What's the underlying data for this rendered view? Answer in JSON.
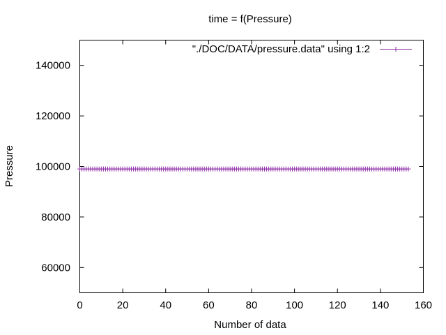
{
  "chart_data": {
    "type": "line",
    "title": "time = f(Pressure)",
    "xlabel": "Number of data",
    "ylabel": "Pressure",
    "xlim": [
      0,
      160
    ],
    "ylim": [
      50000,
      150000
    ],
    "xticks": [
      0,
      20,
      40,
      60,
      80,
      100,
      120,
      140,
      160
    ],
    "yticks": [
      60000,
      80000,
      100000,
      120000,
      140000
    ],
    "grid": false,
    "legend_position": "top-right",
    "series": [
      {
        "name": "\"./DOC/DATA/pressure.data\" using 1:2",
        "color": "#8e2ea6",
        "marker": "plus",
        "x_start": 0,
        "x_end": 153,
        "x_step": 1,
        "value": 99000
      }
    ]
  }
}
